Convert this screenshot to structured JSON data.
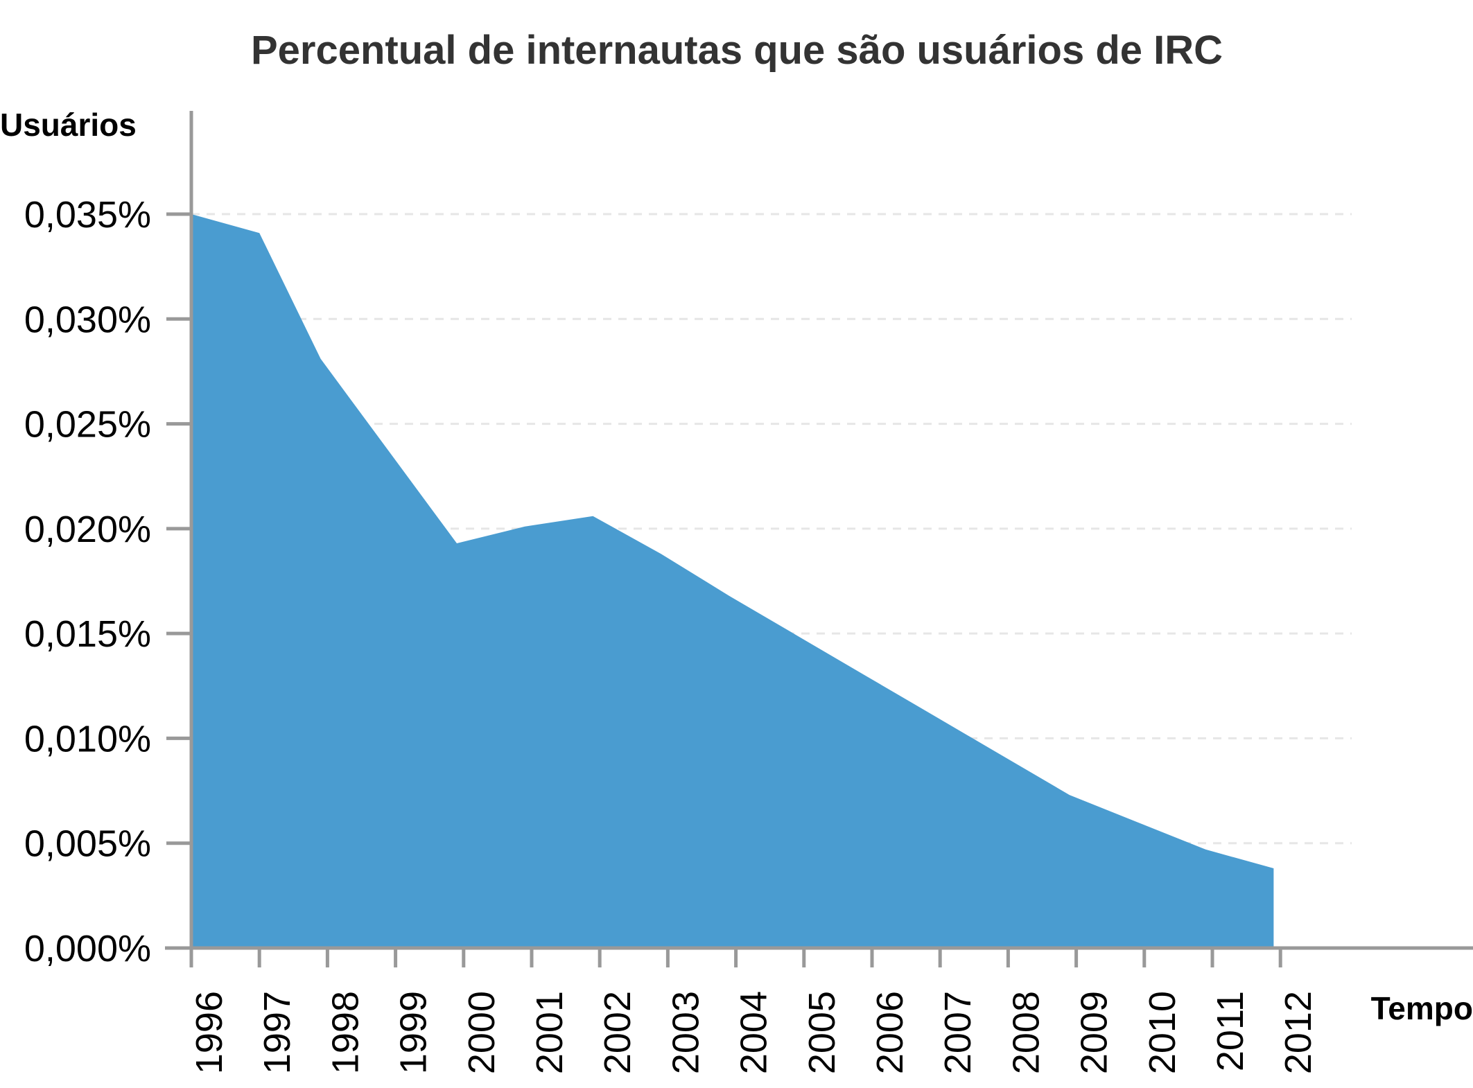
{
  "chart_data": {
    "type": "area",
    "title": "Percentual de internautas que são usuários de IRC",
    "ylabel": "Usuários",
    "xlabel": "Tempo",
    "x": [
      "1996",
      "1997",
      "1998",
      "1999",
      "2000",
      "2001",
      "2002",
      "2003",
      "2004",
      "2005",
      "2006",
      "2007",
      "2008",
      "2009",
      "2010",
      "2011",
      "2012"
    ],
    "y_ticks": [
      "0,000%",
      "0,005%",
      "0,010%",
      "0,015%",
      "0,020%",
      "0,025%",
      "0,030%",
      "0,035%"
    ],
    "y_tick_values": [
      0,
      0.005,
      0.01,
      0.015,
      0.02,
      0.025,
      0.03,
      0.035
    ],
    "ylim": [
      0,
      0.035
    ],
    "grid": true,
    "color": "#4a9cd0",
    "series": [
      {
        "x": [
          1996.0,
          1997.0,
          1997.9,
          1998.9,
          1999.9,
          2000.9,
          2001.9,
          2002.9,
          2003.9,
          2004.9,
          2005.9,
          2006.9,
          2007.9,
          2008.9,
          2009.9,
          2010.9,
          2011.9
        ],
        "values": [
          0.035,
          0.0341,
          0.0281,
          0.0237,
          0.0193,
          0.0201,
          0.0206,
          0.0188,
          0.0168,
          0.0149,
          0.013,
          0.0111,
          0.0092,
          0.0073,
          0.006,
          0.0047,
          0.0038
        ]
      }
    ]
  }
}
